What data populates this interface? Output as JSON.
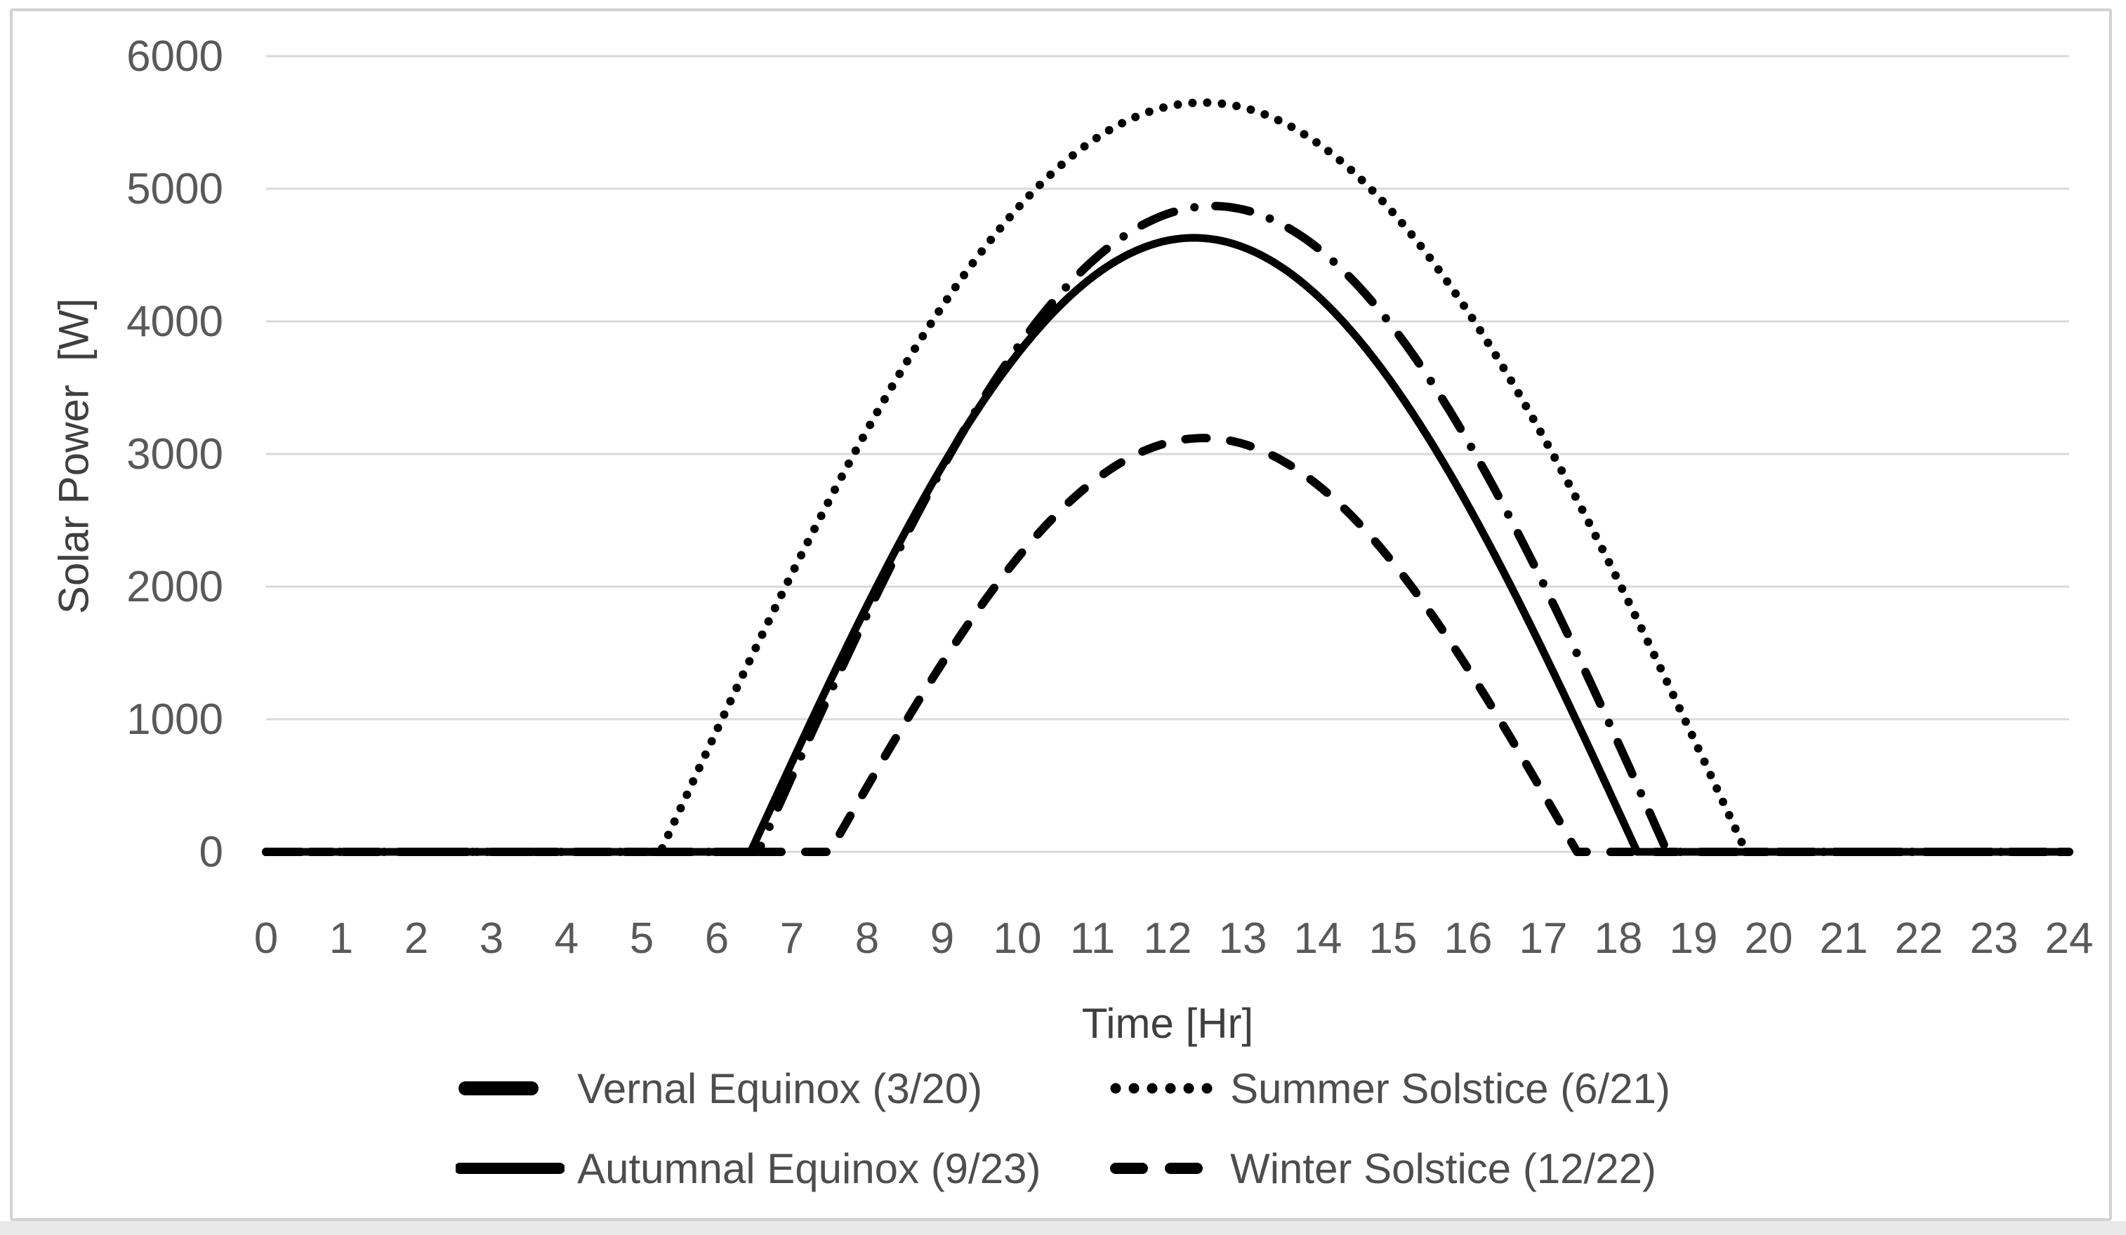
{
  "chart_data": {
    "type": "line",
    "title": "",
    "xlabel": "Time [Hr]",
    "ylabel": "Solar Power  [W]",
    "x": [
      0,
      1,
      2,
      3,
      4,
      5,
      6,
      7,
      8,
      9,
      10,
      11,
      12,
      13,
      14,
      15,
      16,
      17,
      18,
      19,
      20,
      21,
      22,
      23,
      24
    ],
    "x_ticks": [
      "0",
      "1",
      "2",
      "3",
      "4",
      "5",
      "6",
      "7",
      "8",
      "9",
      "10",
      "11",
      "12",
      "13",
      "14",
      "15",
      "16",
      "17",
      "18",
      "19",
      "20",
      "21",
      "22",
      "23",
      "24"
    ],
    "y_ticks": [
      "0",
      "1000",
      "2000",
      "3000",
      "4000",
      "5000",
      "6000"
    ],
    "xlim": [
      0,
      24
    ],
    "ylim": [
      0,
      6000
    ],
    "grid": "horizontal",
    "legend_position": "bottom",
    "line_color": "#000000",
    "gridline_color": "#d9d9d9",
    "tick_label_color": "#595959",
    "axis_title_color": "#3f3f3f",
    "border_color": "#d2d2d2",
    "series": [
      {
        "name": "Vernal Equinox (3/20)",
        "line_style": "dash-dot",
        "sunrise_hr": 6.55,
        "sunset_hr": 18.65,
        "peak_w": 4870,
        "values": [
          0,
          0,
          0,
          0,
          0,
          0,
          0,
          570,
          1790,
          2890,
          3800,
          4460,
          4810,
          4840,
          4550,
          3950,
          3090,
          2020,
          820,
          0,
          0,
          0,
          0,
          0,
          0
        ]
      },
      {
        "name": "Summer Solstice (6/21)",
        "line_style": "dotted",
        "sunrise_hr": 5.25,
        "sunset_hr": 19.7,
        "peak_w": 5650,
        "values": [
          0,
          0,
          0,
          0,
          0,
          0,
          920,
          2100,
          3180,
          4110,
          4850,
          5360,
          5620,
          5610,
          5340,
          4820,
          4070,
          3140,
          2050,
          860,
          0,
          0,
          0,
          0,
          0
        ]
      },
      {
        "name": "Autumnal Equinox (9/23)",
        "line_style": "solid",
        "sunrise_hr": 6.45,
        "sunset_hr": 18.25,
        "peak_w": 4630,
        "values": [
          0,
          0,
          0,
          0,
          0,
          0,
          0,
          680,
          1860,
          2910,
          3750,
          4330,
          4610,
          4560,
          4190,
          3530,
          2610,
          1510,
          310,
          0,
          0,
          0,
          0,
          0,
          0
        ]
      },
      {
        "name": "Winter Solstice (12/22)",
        "line_style": "dashed",
        "sunrise_hr": 7.5,
        "sunset_hr": 17.45,
        "peak_w": 3120,
        "values": [
          0,
          0,
          0,
          0,
          0,
          0,
          0,
          0,
          490,
          1420,
          2210,
          2790,
          3090,
          3080,
          2770,
          2180,
          1380,
          440,
          0,
          0,
          0,
          0,
          0,
          0,
          0
        ]
      }
    ]
  }
}
